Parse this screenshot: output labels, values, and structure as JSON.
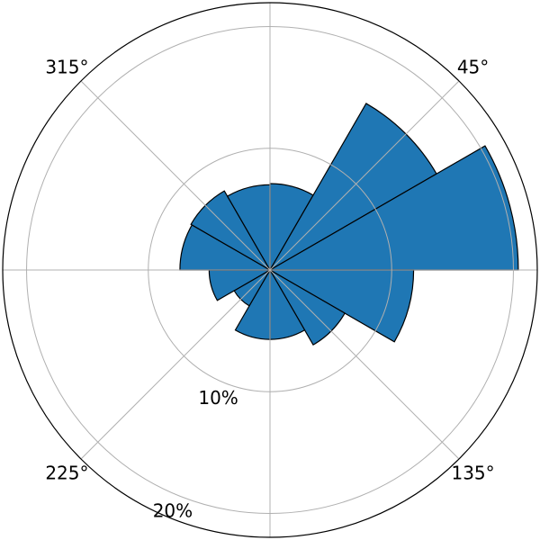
{
  "chart_data": {
    "type": "polar-bar",
    "title": "",
    "theta_zero_location": "N",
    "theta_direction": "clockwise",
    "bar_color": "#1f77b4",
    "edge_color": "#000000",
    "grid": true,
    "bin_width_deg": 30,
    "r_max": 21,
    "r_ticks": [
      {
        "value": 10,
        "label": "10%"
      },
      {
        "value": 20,
        "label": "20%"
      }
    ],
    "theta_ticks": [
      {
        "angle": 0,
        "label": ""
      },
      {
        "angle": 45,
        "label": "45°"
      },
      {
        "angle": 90,
        "label": ""
      },
      {
        "angle": 135,
        "label": "135°"
      },
      {
        "angle": 180,
        "label": ""
      },
      {
        "angle": 225,
        "label": "225°"
      },
      {
        "angle": 270,
        "label": "°"
      },
      {
        "angle": 315,
        "label": "315°"
      }
    ],
    "bars": [
      {
        "start": 0,
        "value": 7.1
      },
      {
        "start": 30,
        "value": 15.8
      },
      {
        "start": 60,
        "value": 20.4
      },
      {
        "start": 90,
        "value": 11.8
      },
      {
        "start": 120,
        "value": 7.1
      },
      {
        "start": 150,
        "value": 5.7
      },
      {
        "start": 180,
        "value": 5.7
      },
      {
        "start": 210,
        "value": 3.4
      },
      {
        "start": 240,
        "value": 5.0
      },
      {
        "start": 270,
        "value": 7.4
      },
      {
        "start": 300,
        "value": 7.5
      },
      {
        "start": 330,
        "value": 7.0
      }
    ]
  }
}
